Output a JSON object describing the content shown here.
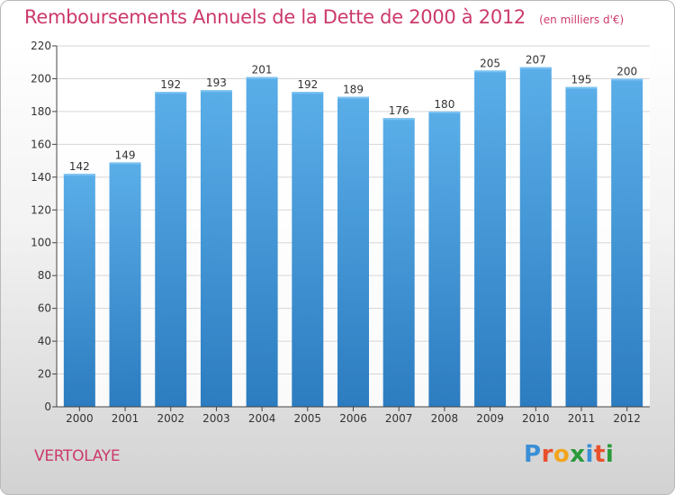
{
  "header": {
    "title": "Remboursements Annuels de la Dette de 2000 à 2012",
    "unit": "(en milliers d'€)"
  },
  "footer": {
    "commune": "VERTOLAYE",
    "brand": "Proxiti"
  },
  "colors": {
    "title": "#cc3a6a",
    "bar_top": "#5aaee8",
    "bar_bottom": "#2c7cc0",
    "grid": "#d6d6d6"
  },
  "chart_data": {
    "type": "bar",
    "categories": [
      "2000",
      "2001",
      "2002",
      "2003",
      "2004",
      "2005",
      "2006",
      "2007",
      "2008",
      "2009",
      "2010",
      "2011",
      "2012"
    ],
    "values": [
      142,
      149,
      192,
      193,
      201,
      192,
      189,
      176,
      180,
      205,
      207,
      195,
      200
    ],
    "ylim": [
      0,
      220
    ],
    "yticks": [
      0,
      20,
      40,
      60,
      80,
      100,
      120,
      140,
      160,
      180,
      200,
      220
    ],
    "grid": true,
    "data_labels": true
  }
}
